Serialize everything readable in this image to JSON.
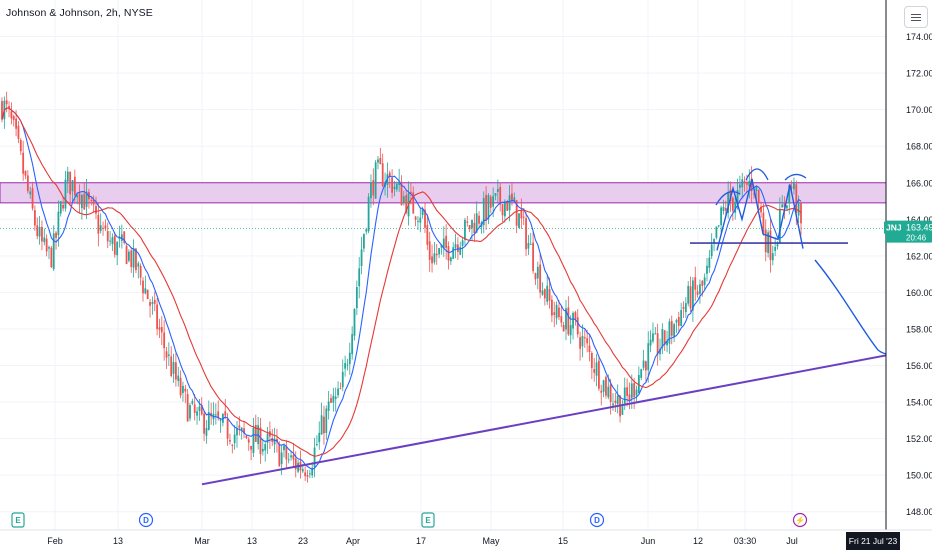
{
  "header": {
    "title": "Johnson & Johnson, 2h, NYSE"
  },
  "price_tag": {
    "symbol": "JNJ",
    "price": "163.49",
    "countdown": "20:46"
  },
  "crosshair_label": "Fri 21 Jul '23",
  "colors": {
    "up": "#26a69a",
    "down": "#ef5350",
    "ma_fast": "#2962ff",
    "ma_slow": "#e53935",
    "zone_fill": "#e9cdee",
    "zone_border": "#9c27b0",
    "trendline": "#6b3fc2",
    "drawing": "#1e5be0",
    "price_tag_bg": "#22ab94"
  },
  "events": [
    {
      "icon": "earnings-icon",
      "text": "E"
    },
    {
      "icon": "dividend-icon",
      "text": "D"
    },
    {
      "icon": "earnings-icon",
      "text": "E"
    },
    {
      "icon": "dividend-icon",
      "text": "D"
    },
    {
      "icon": "split-icon",
      "text": "⚡"
    }
  ],
  "chart_data": {
    "type": "candlestick",
    "symbol": "JNJ",
    "timeframe": "2h",
    "exchange": "NYSE",
    "y_range": [
      147,
      176
    ],
    "y_ticks": [
      "148.00",
      "150.00",
      "152.00",
      "154.00",
      "156.00",
      "158.00",
      "160.00",
      "162.00",
      "164.00",
      "166.00",
      "168.00",
      "170.00",
      "172.00",
      "174.00"
    ],
    "x_ticks": [
      "Feb",
      "13",
      "Mar",
      "13",
      "23",
      "Apr",
      "17",
      "May",
      "15",
      "Jun",
      "12",
      "03:30",
      "Jul"
    ],
    "last_price": 163.49,
    "resistance_zone": [
      164.9,
      166.0
    ],
    "neckline": 162.7,
    "trendline": {
      "from": {
        "date": "late Feb",
        "price": 149.5
      },
      "to": {
        "date": "Jul 21",
        "price": 156.7
      }
    },
    "path_points": [
      {
        "label": "Jan start",
        "price": 170.3
      },
      {
        "label": "early Feb",
        "price": 162.0
      },
      {
        "label": "Feb 7",
        "price": 166.0
      },
      {
        "label": "Feb 13",
        "price": 162.5
      },
      {
        "label": "Mar 1",
        "price": 153.0
      },
      {
        "label": "Mar 13",
        "price": 152.0
      },
      {
        "label": "Mar 23",
        "price": 150.5
      },
      {
        "label": "late Mar",
        "price": 154.0
      },
      {
        "label": "Apr 6",
        "price": 166.5
      },
      {
        "label": "Apr 17",
        "price": 164.5
      },
      {
        "label": "Apr 19",
        "price": 162.0
      },
      {
        "label": "May 1",
        "price": 165.0
      },
      {
        "label": "May 15",
        "price": 158.5
      },
      {
        "label": "May 31",
        "price": 154.0
      },
      {
        "label": "Jun 5",
        "price": 157.0
      },
      {
        "label": "Jun 12",
        "price": 160.0
      },
      {
        "label": "Jun 20",
        "price": 165.0
      },
      {
        "label": "Jun 26",
        "price": 166.0
      },
      {
        "label": "Jun 29",
        "price": 162.5
      },
      {
        "label": "Jul 3",
        "price": 165.8
      },
      {
        "label": "Jul 6",
        "price": 163.5
      }
    ],
    "series": [
      {
        "name": "",
        "style": "moving average (fast)"
      },
      {
        "name": "",
        "style": "moving average (slow)"
      }
    ],
    "grid": true,
    "legend": "none"
  }
}
